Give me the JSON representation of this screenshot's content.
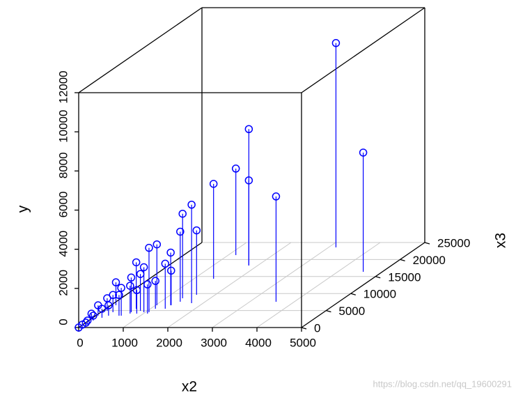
{
  "chart_data": {
    "type": "scatter3d",
    "x_label": "x2",
    "y_label": "y",
    "z_label": "x3",
    "color": "#0000ff",
    "x": [
      3165,
      4570,
      1800,
      1170,
      1800,
      3590,
      1440,
      1740,
      1380,
      1580,
      1440,
      1030,
      1080,
      1340,
      1330,
      1350,
      680,
      965,
      680,
      840,
      1110,
      1090,
      110,
      570,
      270,
      520,
      95,
      285,
      205,
      100,
      60,
      25,
      0,
      50,
      15,
      700,
      850,
      50
    ],
    "z": [
      23570,
      16400,
      18240,
      21300,
      18240,
      7580,
      14340,
      7170,
      8600,
      9630,
      7580,
      6550,
      4500,
      6550,
      5530,
      6550,
      5530,
      4500,
      4510,
      4920,
      5530,
      4100,
      6560,
      3480,
      4510,
      3480,
      4920,
      3480,
      2870,
      2050,
      1250,
      500,
      0,
      1000,
      2460,
      4100,
      4100,
      3480
    ],
    "y": [
      10440,
      6090,
      6970,
      4420,
      4350,
      5380,
      4850,
      5030,
      4320,
      3290,
      3580,
      3110,
      3290,
      2690,
      2300,
      1770,
      2370,
      2300,
      1770,
      1880,
      1420,
      1490,
      1170,
      1420,
      880,
      1060,
      640,
      530,
      460,
      250,
      140,
      60,
      0,
      75,
      280,
      1420,
      1200,
      530
    ],
    "xlim": [
      0,
      5000
    ],
    "xticks": [
      0,
      1000,
      2000,
      3000,
      4000,
      5000
    ],
    "ylim": [
      0,
      12000
    ],
    "yticks": [
      0,
      2000,
      4000,
      6000,
      8000,
      10000,
      12000
    ],
    "zlim": [
      0,
      25000
    ],
    "zticks": [
      0,
      5000,
      10000,
      15000,
      20000,
      25000
    ],
    "grid": true,
    "watermark": "https://blog.csdn.net/qq_19600291"
  }
}
